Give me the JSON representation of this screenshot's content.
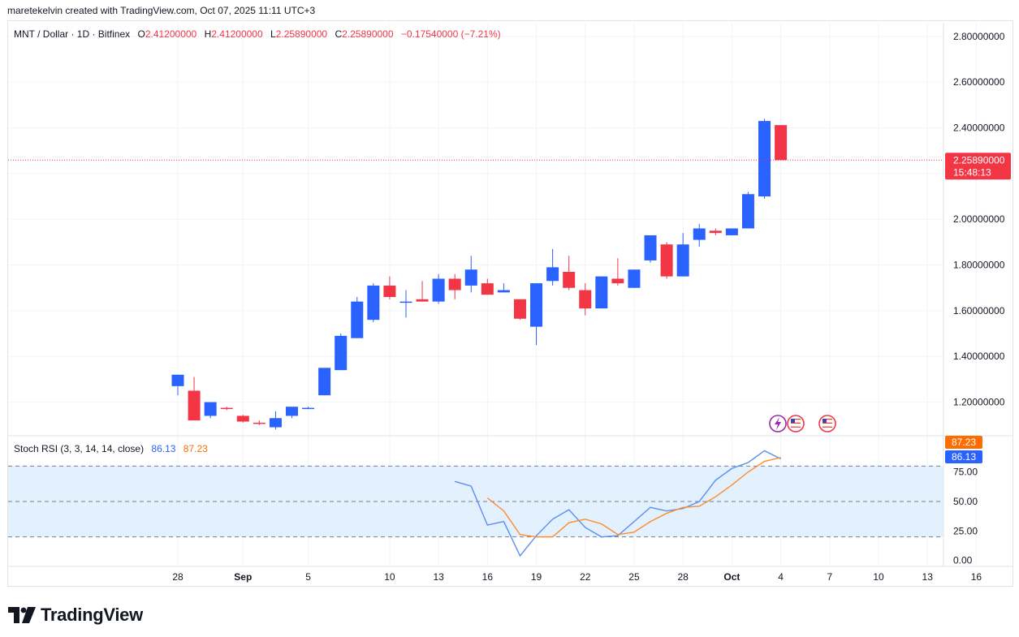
{
  "header": {
    "text": "maretekelvin created with TradingView.com, Oct 07, 2025 11:11 UTC+3"
  },
  "legend": {
    "symbol": "MNT / Dollar · 1D · Bitfinex",
    "open_label": "O",
    "open": "2.41200000",
    "high_label": "H",
    "high": "2.41200000",
    "low_label": "L",
    "low": "2.25890000",
    "close_label": "C",
    "close": "2.25890000",
    "change": "−0.17540000 (−7.21%)"
  },
  "price_label": {
    "value": "2.25890000",
    "countdown": "15:48:13"
  },
  "rsi_legend": {
    "title": "Stoch RSI (3, 3, 14, 14, close)",
    "k": "86.13",
    "d": "87.23"
  },
  "logo": {
    "text": "TradingView"
  },
  "colors": {
    "up": "#2962ff",
    "down": "#f23645",
    "k_line": "#5b8ef0",
    "d_line": "#ff8c2a",
    "rsi_band": "#e3f0fd"
  },
  "icons": [
    "lightning-icon",
    "us-flag-icon",
    "us-flag-icon"
  ],
  "chart_data": [
    {
      "type": "candlestick",
      "title": "MNT / Dollar · 1D · Bitfinex",
      "price_axis": [
        "2.80000000",
        "2.60000000",
        "2.40000000",
        "2.20000000",
        "2.00000000",
        "1.80000000",
        "1.60000000",
        "1.40000000",
        "1.20000000"
      ],
      "ylim": [
        1.06,
        2.86
      ],
      "time_axis": [
        "28",
        "Sep",
        "5",
        "10",
        "13",
        "16",
        "19",
        "22",
        "25",
        "28",
        "Oct",
        "4",
        "7",
        "10",
        "13",
        "16"
      ],
      "first_date": "2025-08-26",
      "current_price": 2.2589,
      "candles": [
        {
          "date": "2025-08-26",
          "o": 1.27,
          "h": 1.32,
          "l": 1.23,
          "c": 1.32
        },
        {
          "date": "2025-08-27",
          "o": 1.25,
          "h": 1.31,
          "l": 1.12,
          "c": 1.12
        },
        {
          "date": "2025-08-28",
          "o": 1.14,
          "h": 1.2,
          "l": 1.13,
          "c": 1.2
        },
        {
          "date": "2025-08-29",
          "o": 1.175,
          "h": 1.18,
          "l": 1.165,
          "c": 1.17
        },
        {
          "date": "2025-08-30",
          "o": 1.14,
          "h": 1.145,
          "l": 1.11,
          "c": 1.115
        },
        {
          "date": "2025-08-31",
          "o": 1.11,
          "h": 1.12,
          "l": 1.1,
          "c": 1.105
        },
        {
          "date": "2025-09-01",
          "o": 1.09,
          "h": 1.16,
          "l": 1.08,
          "c": 1.13
        },
        {
          "date": "2025-09-02",
          "o": 1.14,
          "h": 1.18,
          "l": 1.13,
          "c": 1.18
        },
        {
          "date": "2025-09-03",
          "o": 1.17,
          "h": 1.18,
          "l": 1.17,
          "c": 1.175
        },
        {
          "date": "2025-09-04",
          "o": 1.23,
          "h": 1.35,
          "l": 1.23,
          "c": 1.35
        },
        {
          "date": "2025-09-05",
          "o": 1.34,
          "h": 1.5,
          "l": 1.34,
          "c": 1.49
        },
        {
          "date": "2025-09-06",
          "o": 1.48,
          "h": 1.66,
          "l": 1.48,
          "c": 1.64
        },
        {
          "date": "2025-09-07",
          "o": 1.56,
          "h": 1.72,
          "l": 1.55,
          "c": 1.71
        },
        {
          "date": "2025-09-08",
          "o": 1.71,
          "h": 1.75,
          "l": 1.65,
          "c": 1.66
        },
        {
          "date": "2025-09-09",
          "o": 1.64,
          "h": 1.69,
          "l": 1.57,
          "c": 1.64
        },
        {
          "date": "2025-09-10",
          "o": 1.65,
          "h": 1.73,
          "l": 1.64,
          "c": 1.64
        },
        {
          "date": "2025-09-11",
          "o": 1.64,
          "h": 1.76,
          "l": 1.63,
          "c": 1.74
        },
        {
          "date": "2025-09-12",
          "o": 1.74,
          "h": 1.76,
          "l": 1.65,
          "c": 1.69
        },
        {
          "date": "2025-09-13",
          "o": 1.71,
          "h": 1.84,
          "l": 1.68,
          "c": 1.78
        },
        {
          "date": "2025-09-14",
          "o": 1.72,
          "h": 1.74,
          "l": 1.67,
          "c": 1.67
        },
        {
          "date": "2025-09-15",
          "o": 1.68,
          "h": 1.72,
          "l": 1.68,
          "c": 1.69
        },
        {
          "date": "2025-09-16",
          "o": 1.65,
          "h": 1.65,
          "l": 1.56,
          "c": 1.565
        },
        {
          "date": "2025-09-17",
          "o": 1.53,
          "h": 1.72,
          "l": 1.45,
          "c": 1.72
        },
        {
          "date": "2025-09-18",
          "o": 1.73,
          "h": 1.87,
          "l": 1.71,
          "c": 1.79
        },
        {
          "date": "2025-09-19",
          "o": 1.77,
          "h": 1.84,
          "l": 1.69,
          "c": 1.7
        },
        {
          "date": "2025-09-20",
          "o": 1.69,
          "h": 1.72,
          "l": 1.58,
          "c": 1.61
        },
        {
          "date": "2025-09-21",
          "o": 1.61,
          "h": 1.75,
          "l": 1.61,
          "c": 1.75
        },
        {
          "date": "2025-09-22",
          "o": 1.74,
          "h": 1.83,
          "l": 1.71,
          "c": 1.72
        },
        {
          "date": "2025-09-23",
          "o": 1.7,
          "h": 1.78,
          "l": 1.7,
          "c": 1.78
        },
        {
          "date": "2025-09-24",
          "o": 1.82,
          "h": 1.93,
          "l": 1.81,
          "c": 1.93
        },
        {
          "date": "2025-09-25",
          "o": 1.89,
          "h": 1.9,
          "l": 1.74,
          "c": 1.75
        },
        {
          "date": "2025-09-26",
          "o": 1.75,
          "h": 1.94,
          "l": 1.75,
          "c": 1.89
        },
        {
          "date": "2025-09-27",
          "o": 1.91,
          "h": 1.98,
          "l": 1.88,
          "c": 1.96
        },
        {
          "date": "2025-09-28",
          "o": 1.95,
          "h": 1.96,
          "l": 1.93,
          "c": 1.94
        },
        {
          "date": "2025-09-29",
          "o": 1.93,
          "h": 1.96,
          "l": 1.93,
          "c": 1.96
        },
        {
          "date": "2025-09-30",
          "o": 1.96,
          "h": 2.12,
          "l": 1.96,
          "c": 2.11
        },
        {
          "date": "2025-10-01",
          "o": 2.1,
          "h": 2.44,
          "l": 2.09,
          "c": 2.43
        },
        {
          "date": "2025-10-02",
          "o": 2.412,
          "h": 2.412,
          "l": 2.2589,
          "c": 2.2589
        }
      ]
    },
    {
      "type": "line",
      "title": "Stoch RSI (3, 3, 14, 14, close)",
      "ylim": [
        -5,
        105
      ],
      "y_ticks": [
        "75.00",
        "50.00",
        "25.00",
        "0.00"
      ],
      "bands": {
        "upper": 80,
        "middle": 50,
        "lower": 20
      },
      "series": [
        {
          "name": "K",
          "x": [
            "2025-09-12",
            "2025-09-13",
            "2025-09-14",
            "2025-09-15",
            "2025-09-16",
            "2025-09-17",
            "2025-09-18",
            "2025-09-19",
            "2025-09-20",
            "2025-09-21",
            "2025-09-22",
            "2025-09-23",
            "2025-09-24",
            "2025-09-25",
            "2025-09-26",
            "2025-09-27",
            "2025-09-28",
            "2025-09-29",
            "2025-09-30",
            "2025-10-01",
            "2025-10-02"
          ],
          "values": [
            67,
            63,
            30,
            33,
            4,
            21,
            35,
            43,
            28,
            20,
            21,
            33,
            45,
            42,
            44,
            50,
            68,
            78,
            83,
            93,
            86.13
          ]
        },
        {
          "name": "D",
          "x": [
            "2025-09-14",
            "2025-09-15",
            "2025-09-16",
            "2025-09-17",
            "2025-09-18",
            "2025-09-19",
            "2025-09-20",
            "2025-09-21",
            "2025-09-22",
            "2025-09-23",
            "2025-09-24",
            "2025-09-25",
            "2025-09-26",
            "2025-09-27",
            "2025-09-28",
            "2025-09-29",
            "2025-09-30",
            "2025-10-01",
            "2025-10-02"
          ],
          "values": [
            53,
            42,
            22,
            20,
            20,
            32,
            35,
            31,
            22,
            24,
            33,
            40,
            45,
            46,
            54,
            64,
            75,
            84,
            87.23
          ]
        }
      ]
    }
  ]
}
